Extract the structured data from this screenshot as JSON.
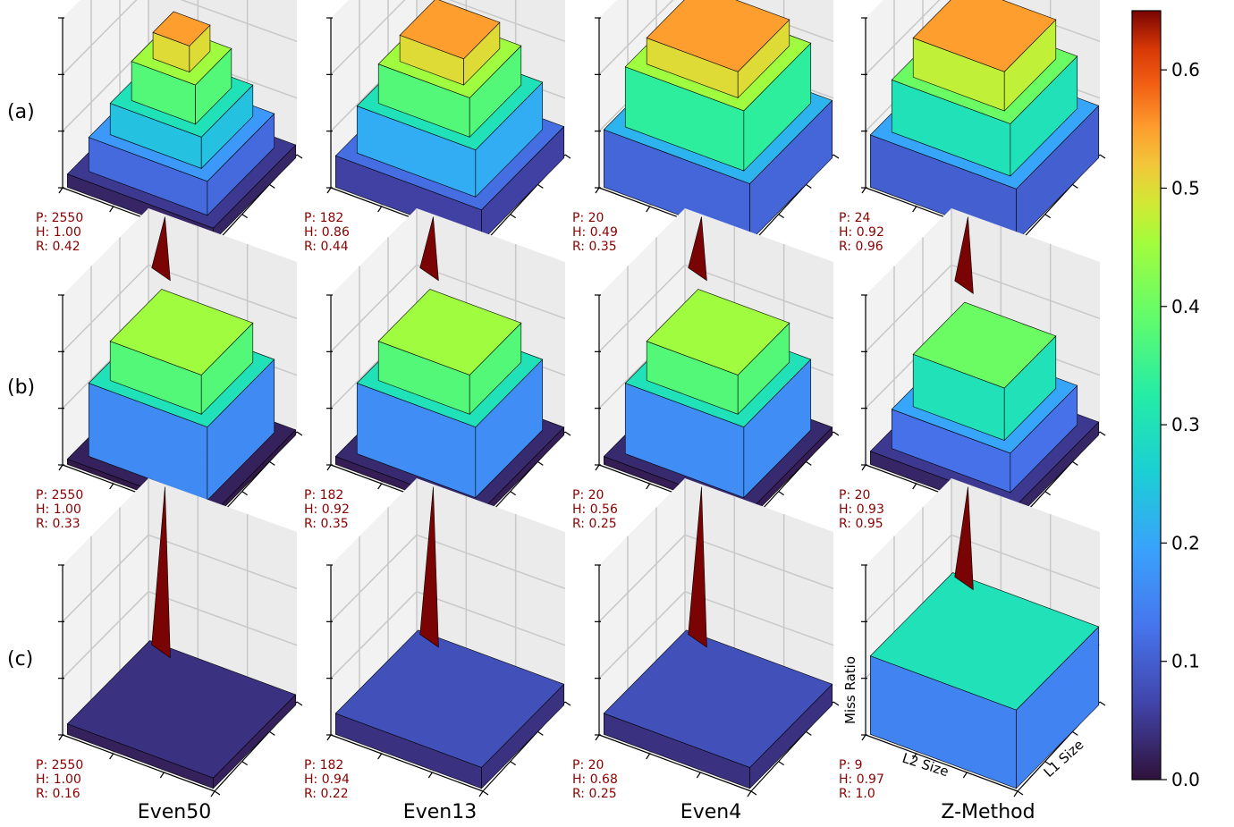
{
  "chart_data": {
    "type": "surface3d",
    "z_label": "Miss Ratio",
    "x_label": "L2 Size",
    "y_label": "L1 Size",
    "columns": [
      "Even50",
      "Even13",
      "Even4",
      "Z-Method"
    ],
    "rows": [
      "(a)",
      "(b)",
      "(c)"
    ],
    "colormap": "turbo",
    "colorbar": {
      "min": 0.0,
      "max": 0.65,
      "ticks": [
        "0.0",
        "0.1",
        "0.2",
        "0.3",
        "0.4",
        "0.5",
        "0.6"
      ]
    },
    "panels": [
      {
        "row": "(a)",
        "col": "Even50",
        "P": "P: 2550",
        "H": "H: 1.00",
        "R": "R: 0.42",
        "peak": 0.65,
        "levels": [
          0.05,
          0.18,
          0.3,
          0.45,
          0.55
        ]
      },
      {
        "row": "(a)",
        "col": "Even13",
        "P": "P: 182",
        "H": "H: 0.86",
        "R": "R: 0.44",
        "peak": 0.65,
        "levels": [
          0.12,
          0.3,
          0.45,
          0.55
        ]
      },
      {
        "row": "(a)",
        "col": "Even4",
        "P": "P: 20",
        "H": "H: 0.49",
        "R": "R: 0.35",
        "peak": 0.65,
        "levels": [
          0.22,
          0.45,
          0.55
        ]
      },
      {
        "row": "(a)",
        "col": "Z-Method",
        "P": "P: 24",
        "H": "H: 0.92",
        "R": "R: 0.96",
        "peak": 0.65,
        "levels": [
          0.2,
          0.4,
          0.55
        ]
      },
      {
        "row": "(b)",
        "col": "Even50",
        "P": "P: 2550",
        "H": "H: 1.00",
        "R": "R: 0.33",
        "peak": 0.65,
        "levels": [
          0.02,
          0.3,
          0.45
        ]
      },
      {
        "row": "(b)",
        "col": "Even13",
        "P": "P: 182",
        "H": "H: 0.92",
        "R": "R: 0.35",
        "peak": 0.65,
        "levels": [
          0.03,
          0.3,
          0.45
        ]
      },
      {
        "row": "(b)",
        "col": "Even4",
        "P": "P: 20",
        "H": "H: 0.56",
        "R": "R: 0.25",
        "peak": 0.65,
        "levels": [
          0.03,
          0.3,
          0.45
        ]
      },
      {
        "row": "(b)",
        "col": "Z-Method",
        "P": "P: 20",
        "H": "H: 0.93",
        "R": "R: 0.95",
        "peak": 0.65,
        "levels": [
          0.05,
          0.2,
          0.4
        ]
      },
      {
        "row": "(c)",
        "col": "Even50",
        "P": "P: 2550",
        "H": "H: 1.00",
        "R": "R: 0.16",
        "peak": 0.65,
        "levels": [
          0.04
        ]
      },
      {
        "row": "(c)",
        "col": "Even13",
        "P": "P: 182",
        "H": "H: 0.94",
        "R": "R: 0.22",
        "peak": 0.65,
        "levels": [
          0.08
        ]
      },
      {
        "row": "(c)",
        "col": "Even4",
        "P": "P: 20",
        "H": "H: 0.68",
        "R": "R: 0.25",
        "peak": 0.65,
        "levels": [
          0.08
        ]
      },
      {
        "row": "(c)",
        "col": "Z-Method",
        "P": "P: 9",
        "H": "H: 0.97",
        "R": "R: 1.0",
        "peak": 0.65,
        "levels": [
          0.3
        ]
      }
    ]
  }
}
